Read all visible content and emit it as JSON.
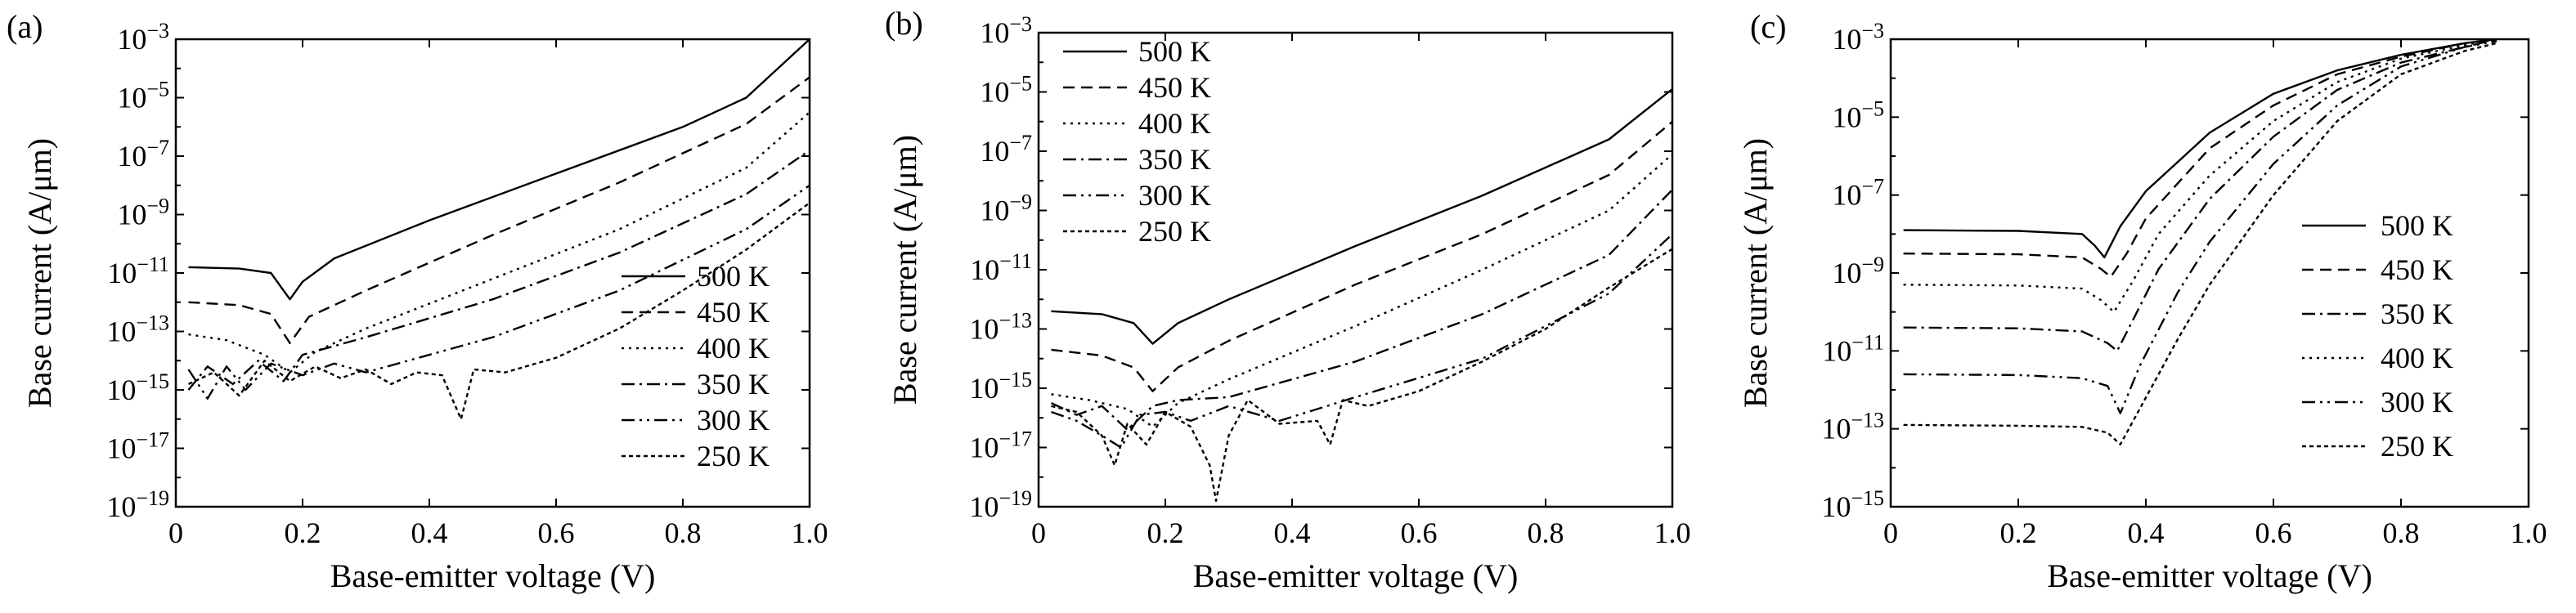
{
  "figure": {
    "panels": [
      "(a)",
      "(b)",
      "(c)"
    ]
  },
  "styles": {
    "500 K": {
      "dash": ""
    },
    "450 K": {
      "dash": "14 8"
    },
    "400 K": {
      "dash": "3 6"
    },
    "350 K": {
      "dash": "16 6 3 6"
    },
    "300 K": {
      "dash": "16 6 3 6 3 6"
    },
    "250 K": {
      "dash": "5 4"
    }
  },
  "chart_data": [
    {
      "panel": "(a)",
      "type": "line",
      "xlabel": "Base-emitter voltage (V)",
      "ylabel": "Base current (A/μm)",
      "xlim": [
        0,
        1.0
      ],
      "ylim_log10": [
        -19,
        -3
      ],
      "y_scale": "log",
      "x_ticks": [
        "0",
        "0.2",
        "0.4",
        "0.6",
        "0.8",
        "1.0"
      ],
      "y_ticks": [
        "10^-3",
        "10^-5",
        "10^-7",
        "10^-9",
        "10^-11",
        "10^-13",
        "10^-15",
        "10^-17",
        "10^-19"
      ],
      "legend_position": "lower-right",
      "legend": [
        "500 K",
        "450 K",
        "400 K",
        "350 K",
        "300 K",
        "250 K"
      ],
      "series": [
        {
          "name": "500 K",
          "x": [
            0.02,
            0.1,
            0.15,
            0.18,
            0.2,
            0.25,
            0.4,
            0.6,
            0.8,
            0.9,
            1.0
          ],
          "y_log10": [
            -10.8,
            -10.85,
            -11.0,
            -11.9,
            -11.3,
            -10.5,
            -9.2,
            -7.6,
            -6.0,
            -5.0,
            -3.0
          ]
        },
        {
          "name": "450 K",
          "x": [
            0.02,
            0.1,
            0.15,
            0.18,
            0.21,
            0.3,
            0.5,
            0.7,
            0.9,
            1.0
          ],
          "y_log10": [
            -12.0,
            -12.1,
            -12.4,
            -13.4,
            -12.5,
            -11.6,
            -9.7,
            -7.9,
            -5.9,
            -4.3
          ]
        },
        {
          "name": "400 K",
          "x": [
            0.02,
            0.08,
            0.14,
            0.18,
            0.22,
            0.3,
            0.5,
            0.7,
            0.9,
            1.0
          ],
          "y_log10": [
            -13.1,
            -13.3,
            -13.8,
            -14.4,
            -13.7,
            -12.9,
            -11.2,
            -9.5,
            -7.4,
            -5.5
          ]
        },
        {
          "name": "350 K",
          "x": [
            0.02,
            0.05,
            0.09,
            0.13,
            0.17,
            0.2,
            0.3,
            0.5,
            0.7,
            0.9,
            1.0
          ],
          "y_log10": [
            -15.0,
            -14.2,
            -14.8,
            -14.0,
            -14.7,
            -13.8,
            -13.2,
            -11.9,
            -10.3,
            -8.3,
            -6.8
          ]
        },
        {
          "name": "300 K",
          "x": [
            0.02,
            0.05,
            0.08,
            0.11,
            0.15,
            0.2,
            0.25,
            0.3,
            0.5,
            0.7,
            0.9,
            1.0
          ],
          "y_log10": [
            -14.3,
            -15.3,
            -14.2,
            -15.0,
            -14.1,
            -14.5,
            -14.1,
            -14.4,
            -13.2,
            -11.6,
            -9.5,
            -8.0
          ]
        },
        {
          "name": "250 K",
          "x": [
            0.02,
            0.06,
            0.1,
            0.14,
            0.18,
            0.22,
            0.26,
            0.3,
            0.34,
            0.38,
            0.42,
            0.45,
            0.47,
            0.52,
            0.6,
            0.7,
            0.8,
            0.9,
            1.0
          ],
          "y_log10": [
            -14.8,
            -14.4,
            -15.2,
            -14.0,
            -14.7,
            -14.2,
            -14.6,
            -14.3,
            -14.8,
            -14.4,
            -14.5,
            -16.0,
            -14.3,
            -14.4,
            -13.9,
            -12.9,
            -11.6,
            -10.2,
            -8.6
          ]
        }
      ]
    },
    {
      "panel": "(b)",
      "type": "line",
      "xlabel": "Base-emitter voltage (V)",
      "ylabel": "Base current (A/μm)",
      "xlim": [
        0,
        1.0
      ],
      "ylim_log10": [
        -19,
        -3
      ],
      "y_scale": "log",
      "x_ticks": [
        "0",
        "0.2",
        "0.4",
        "0.6",
        "0.8",
        "1.0"
      ],
      "y_ticks": [
        "10^-3",
        "10^-5",
        "10^-7",
        "10^-9",
        "10^-11",
        "10^-13",
        "10^-15",
        "10^-17",
        "10^-19"
      ],
      "legend_position": "upper-left",
      "legend": [
        "500 K",
        "450 K",
        "400 K",
        "350 K",
        "300 K",
        "250 K"
      ],
      "series": [
        {
          "name": "500 K",
          "x": [
            0.02,
            0.1,
            0.15,
            0.18,
            0.22,
            0.3,
            0.5,
            0.7,
            0.9,
            1.0
          ],
          "y_log10": [
            -12.4,
            -12.5,
            -12.8,
            -13.5,
            -12.8,
            -12.0,
            -10.2,
            -8.5,
            -6.6,
            -4.9
          ]
        },
        {
          "name": "450 K",
          "x": [
            0.02,
            0.1,
            0.15,
            0.18,
            0.22,
            0.3,
            0.5,
            0.7,
            0.9,
            1.0
          ],
          "y_log10": [
            -13.7,
            -13.9,
            -14.3,
            -15.1,
            -14.3,
            -13.4,
            -11.5,
            -9.8,
            -7.8,
            -6.0
          ]
        },
        {
          "name": "400 K",
          "x": [
            0.02,
            0.08,
            0.14,
            0.18,
            0.22,
            0.3,
            0.5,
            0.7,
            0.9,
            1.0
          ],
          "y_log10": [
            -15.2,
            -15.4,
            -15.7,
            -16.3,
            -15.5,
            -14.7,
            -12.9,
            -11.0,
            -9.0,
            -7.1
          ]
        },
        {
          "name": "350 K",
          "x": [
            0.02,
            0.06,
            0.1,
            0.14,
            0.18,
            0.22,
            0.3,
            0.5,
            0.7,
            0.9,
            1.0
          ],
          "y_log10": [
            -15.5,
            -15.9,
            -15.6,
            -16.4,
            -15.6,
            -15.4,
            -15.3,
            -14.1,
            -12.5,
            -10.5,
            -8.3
          ]
        },
        {
          "name": "300 K",
          "x": [
            0.02,
            0.06,
            0.1,
            0.13,
            0.16,
            0.2,
            0.24,
            0.3,
            0.38,
            0.5,
            0.7,
            0.9,
            1.0
          ],
          "y_log10": [
            -15.8,
            -16.1,
            -16.6,
            -17.0,
            -15.9,
            -15.8,
            -16.1,
            -15.6,
            -16.1,
            -15.3,
            -14.0,
            -11.8,
            -9.8
          ]
        },
        {
          "name": "250 K",
          "x": [
            0.02,
            0.06,
            0.1,
            0.12,
            0.14,
            0.17,
            0.2,
            0.24,
            0.27,
            0.28,
            0.3,
            0.33,
            0.38,
            0.44,
            0.46,
            0.48,
            0.52,
            0.6,
            0.7,
            0.8,
            0.9,
            1.0
          ],
          "y_log10": [
            -15.6,
            -15.8,
            -16.6,
            -17.6,
            -16.2,
            -16.9,
            -15.8,
            -16.3,
            -17.6,
            -18.8,
            -16.6,
            -15.4,
            -16.2,
            -16.1,
            -16.9,
            -15.4,
            -15.6,
            -15.1,
            -14.1,
            -13.0,
            -11.6,
            -10.3
          ]
        }
      ]
    },
    {
      "panel": "(c)",
      "type": "line",
      "xlabel": "Base-emitter voltage (V)",
      "ylabel": "Base current (A/μm)",
      "xlim": [
        0,
        1.0
      ],
      "ylim_log10": [
        -15,
        -3
      ],
      "y_scale": "log",
      "x_ticks": [
        "0",
        "0.2",
        "0.4",
        "0.6",
        "0.8",
        "1.0"
      ],
      "y_ticks": [
        "10^-3",
        "10^-5",
        "10^-7",
        "10^-9",
        "10^-11",
        "10^-13",
        "10^-15"
      ],
      "legend_position": "lower-right",
      "legend": [
        "500 K",
        "450 K",
        "350 K",
        "400 K",
        "300 K",
        "250 K"
      ],
      "series": [
        {
          "name": "500 K",
          "x": [
            0.02,
            0.2,
            0.3,
            0.32,
            0.335,
            0.36,
            0.4,
            0.5,
            0.6,
            0.7,
            0.8,
            0.9,
            0.95
          ],
          "y_log10": [
            -7.9,
            -7.92,
            -8.0,
            -8.3,
            -8.6,
            -7.8,
            -6.9,
            -5.4,
            -4.4,
            -3.8,
            -3.4,
            -3.1,
            -3.0
          ]
        },
        {
          "name": "450 K",
          "x": [
            0.02,
            0.2,
            0.3,
            0.33,
            0.345,
            0.37,
            0.4,
            0.5,
            0.6,
            0.7,
            0.8,
            0.9,
            0.95
          ],
          "y_log10": [
            -8.5,
            -8.52,
            -8.6,
            -8.9,
            -9.1,
            -8.5,
            -7.6,
            -5.8,
            -4.7,
            -3.9,
            -3.45,
            -3.1,
            -3.0
          ]
        },
        {
          "name": "400 K",
          "x": [
            0.02,
            0.2,
            0.3,
            0.33,
            0.35,
            0.38,
            0.42,
            0.5,
            0.6,
            0.7,
            0.8,
            0.9,
            0.95
          ],
          "y_log10": [
            -9.3,
            -9.32,
            -9.4,
            -9.7,
            -10.0,
            -9.2,
            -8.0,
            -6.5,
            -5.1,
            -4.1,
            -3.5,
            -3.15,
            -3.0
          ]
        },
        {
          "name": "350 K",
          "x": [
            0.02,
            0.2,
            0.3,
            0.34,
            0.355,
            0.38,
            0.42,
            0.5,
            0.6,
            0.7,
            0.8,
            0.9,
            0.95
          ],
          "y_log10": [
            -10.4,
            -10.42,
            -10.5,
            -10.8,
            -11.0,
            -10.2,
            -8.9,
            -7.1,
            -5.5,
            -4.3,
            -3.6,
            -3.2,
            -3.0
          ]
        },
        {
          "name": "300 K",
          "x": [
            0.02,
            0.2,
            0.3,
            0.34,
            0.36,
            0.39,
            0.45,
            0.5,
            0.6,
            0.7,
            0.8,
            0.9,
            0.95
          ],
          "y_log10": [
            -11.6,
            -11.62,
            -11.7,
            -11.9,
            -12.6,
            -11.4,
            -9.5,
            -8.2,
            -6.2,
            -4.7,
            -3.7,
            -3.2,
            -3.05
          ]
        },
        {
          "name": "250 K",
          "x": [
            0.02,
            0.2,
            0.3,
            0.34,
            0.36,
            0.4,
            0.45,
            0.5,
            0.6,
            0.7,
            0.8,
            0.9,
            0.95
          ],
          "y_log10": [
            -12.9,
            -12.92,
            -12.95,
            -13.1,
            -13.4,
            -12.2,
            -10.7,
            -9.3,
            -7.0,
            -5.1,
            -3.9,
            -3.3,
            -3.1
          ]
        }
      ]
    }
  ]
}
